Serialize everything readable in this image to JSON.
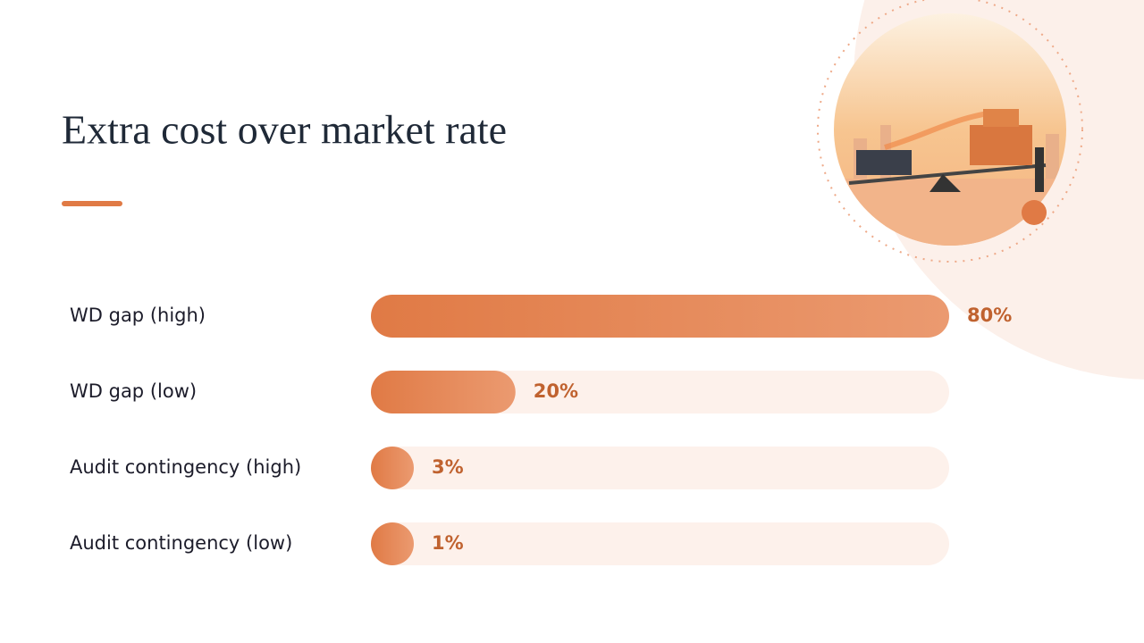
{
  "chart_data": {
    "type": "bar",
    "orientation": "horizontal",
    "title": "Extra cost over market rate",
    "categories": [
      "WD gap (high)",
      "WD gap (low)",
      "Audit contingency (high)",
      "Audit contingency (low)"
    ],
    "values": [
      80,
      20,
      3,
      1
    ],
    "value_labels": [
      "80%",
      "20%",
      "3%",
      "1%"
    ],
    "xlim": [
      0,
      80
    ],
    "color": "#e07a45"
  }
}
